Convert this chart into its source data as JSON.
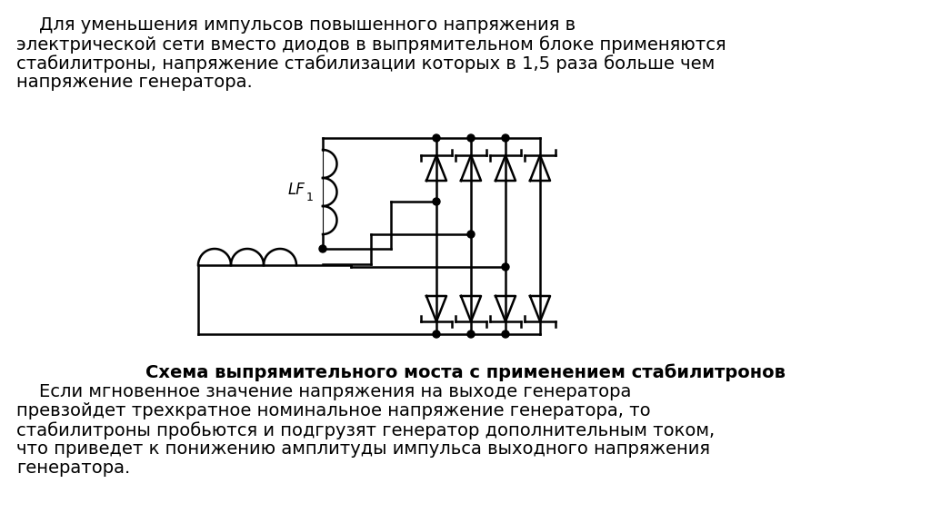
{
  "bg_color": "#ffffff",
  "text_top_line1": "    Для уменьшения импульсов повышенного напряжения в",
  "text_top_line2": "электрической сети вместо диодов в выпрямительном блоке применяются",
  "text_top_line3": "стабилитроны, напряжение стабилизации которых в 1,5 раза больше чем",
  "text_top_line4": "напряжение генератора.",
  "text_bottom_bold": "Схема выпрямительного моста с применением стабилитронов",
  "text_bottom_bold_suffix": ".",
  "text_bottom_line1": "    Если мгновенное значение напряжения на выходе генератора",
  "text_bottom_line2": "превзойдет трехкратное номинальное напряжение генератора, то",
  "text_bottom_line3": "стабилитроны пробьются и подгрузят генератор дополнительным током,",
  "text_bottom_line4": "что приведет к понижению амплитуды импульса выходного напряжения",
  "text_bottom_line5": "генератора.",
  "lf_label": "LF",
  "lf_subscript": "1",
  "font_size_text": 14,
  "font_size_label": 12
}
